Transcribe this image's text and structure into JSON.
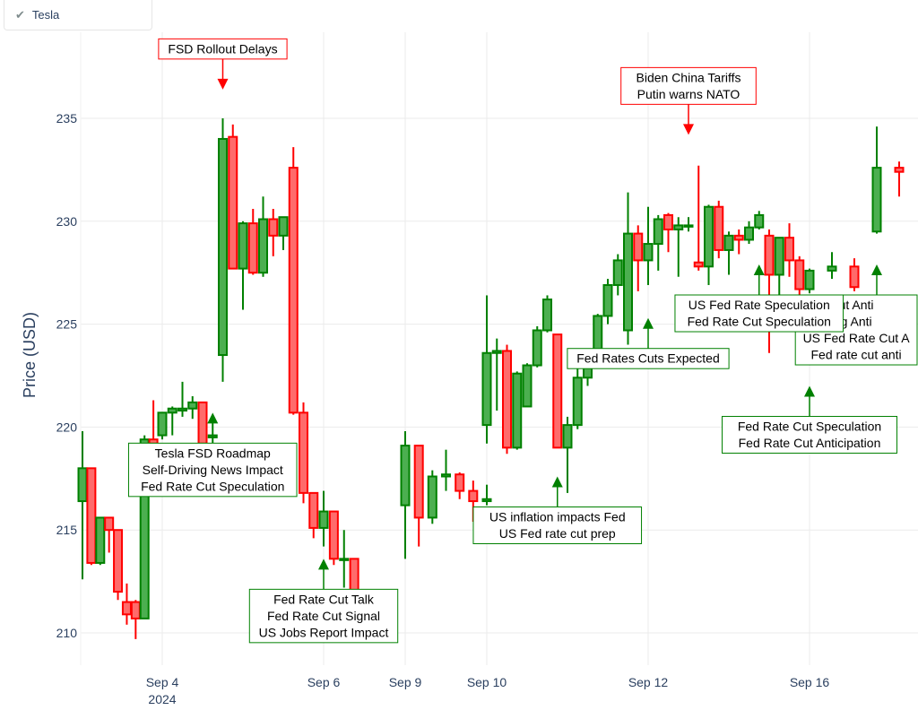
{
  "legend": {
    "label": "Tesla",
    "check_icon": "check-icon"
  },
  "colors": {
    "increasing": "#008000",
    "increasing_fill": "#4caf50",
    "decreasing": "#ff0000",
    "decreasing_fill": "#ff6b6b",
    "grid": "#ebebeb",
    "axis_text": "#2a3f5f"
  },
  "chart_data": {
    "type": "candlestick",
    "series": [
      {
        "name": "Tesla"
      }
    ],
    "ylabel": "Price (USD)",
    "ylim": [
      207,
      238.5
    ],
    "yticks": [
      210,
      215,
      220,
      225,
      230,
      235
    ],
    "xticks": [
      {
        "label": "Sep 4",
        "sub": "2024",
        "t": 2.0
      },
      {
        "label": "Sep 6",
        "t": 4.0
      },
      {
        "label": "Sep 9",
        "t": 5.0
      },
      {
        "label": "Sep 10",
        "t": 6.0
      },
      {
        "label": "Sep 12",
        "t": 8.0
      },
      {
        "label": "Sep 16",
        "t": 10.0
      }
    ],
    "candles": [
      {
        "t": 0.875,
        "o": 216.4,
        "h": 219.8,
        "l": 212.6,
        "c": 218.0
      },
      {
        "t": 1.0,
        "o": 218.0,
        "h": 218.0,
        "l": 213.3,
        "c": 213.4
      },
      {
        "t": 1.125,
        "o": 213.4,
        "h": 215.6,
        "l": 213.3,
        "c": 215.6
      },
      {
        "t": 1.25,
        "o": 215.6,
        "h": 215.6,
        "l": 213.9,
        "c": 215.0
      },
      {
        "t": 1.375,
        "o": 215.0,
        "h": 215.0,
        "l": 211.6,
        "c": 212.0
      },
      {
        "t": 1.5,
        "o": 211.5,
        "h": 212.4,
        "l": 210.4,
        "c": 210.9
      },
      {
        "t": 1.625,
        "o": 211.5,
        "h": 211.6,
        "l": 209.7,
        "c": 210.7
      },
      {
        "t": 1.75,
        "o": 210.7,
        "h": 219.6,
        "l": 210.7,
        "c": 219.4
      },
      {
        "t": 1.875,
        "o": 219.4,
        "h": 221.3,
        "l": 218.5,
        "c": 219.2
      },
      {
        "t": 2.0,
        "o": 219.6,
        "h": 220.7,
        "l": 219.4,
        "c": 220.7
      },
      {
        "t": 2.125,
        "o": 220.7,
        "h": 221.0,
        "l": 219.6,
        "c": 220.9
      },
      {
        "t": 2.25,
        "o": 220.8,
        "h": 222.2,
        "l": 220.5,
        "c": 220.9
      },
      {
        "t": 2.375,
        "o": 220.9,
        "h": 221.5,
        "l": 220.4,
        "c": 221.2
      },
      {
        "t": 2.5,
        "o": 221.2,
        "h": 221.2,
        "l": 219.0,
        "c": 219.2
      },
      {
        "t": 2.625,
        "o": 219.5,
        "h": 220.4,
        "l": 218.8,
        "c": 219.6
      },
      {
        "t": 2.75,
        "o": 223.5,
        "h": 235.0,
        "l": 222.2,
        "c": 234.0
      },
      {
        "t": 2.875,
        "o": 234.1,
        "h": 234.7,
        "l": 227.7,
        "c": 227.7
      },
      {
        "t": 3.0,
        "o": 227.7,
        "h": 230.0,
        "l": 225.7,
        "c": 229.9
      },
      {
        "t": 3.125,
        "o": 229.9,
        "h": 230.6,
        "l": 227.4,
        "c": 227.5
      },
      {
        "t": 3.25,
        "o": 227.5,
        "h": 231.2,
        "l": 227.3,
        "c": 230.1
      },
      {
        "t": 3.375,
        "o": 230.1,
        "h": 230.6,
        "l": 228.3,
        "c": 229.3
      },
      {
        "t": 3.5,
        "o": 229.3,
        "h": 230.2,
        "l": 228.6,
        "c": 230.2
      },
      {
        "t": 3.625,
        "o": 232.6,
        "h": 233.6,
        "l": 220.6,
        "c": 220.7
      },
      {
        "t": 3.75,
        "o": 220.7,
        "h": 221.2,
        "l": 216.3,
        "c": 216.8
      },
      {
        "t": 3.875,
        "o": 216.8,
        "h": 216.8,
        "l": 214.6,
        "c": 215.1
      },
      {
        "t": 4.0,
        "o": 215.1,
        "h": 216.9,
        "l": 214.2,
        "c": 215.9
      },
      {
        "t": 4.125,
        "o": 215.9,
        "h": 215.9,
        "l": 213.3,
        "c": 213.6
      },
      {
        "t": 4.25,
        "o": 213.6,
        "h": 215.0,
        "l": 212.2,
        "c": 213.6
      },
      {
        "t": 4.375,
        "o": 213.6,
        "h": 213.6,
        "l": 210.9,
        "c": 211.2
      },
      {
        "t": 5.0,
        "o": 216.2,
        "h": 219.8,
        "l": 213.6,
        "c": 219.1
      },
      {
        "t": 5.167,
        "o": 219.1,
        "h": 219.1,
        "l": 214.2,
        "c": 215.6
      },
      {
        "t": 5.333,
        "o": 215.6,
        "h": 217.9,
        "l": 215.3,
        "c": 217.6
      },
      {
        "t": 5.5,
        "o": 217.6,
        "h": 218.9,
        "l": 216.9,
        "c": 217.7
      },
      {
        "t": 5.667,
        "o": 217.7,
        "h": 217.8,
        "l": 216.5,
        "c": 216.9
      },
      {
        "t": 5.833,
        "o": 216.9,
        "h": 217.4,
        "l": 215.4,
        "c": 216.4
      },
      {
        "t": 6.0,
        "o": 216.4,
        "h": 217.2,
        "l": 216.2,
        "c": 216.5
      },
      {
        "t": 6.0,
        "o": 220.1,
        "h": 226.4,
        "l": 219.2,
        "c": 223.6
      },
      {
        "t": 6.125,
        "o": 223.6,
        "h": 224.3,
        "l": 220.8,
        "c": 223.7
      },
      {
        "t": 6.25,
        "o": 223.7,
        "h": 224.0,
        "l": 218.7,
        "c": 219.0
      },
      {
        "t": 6.375,
        "o": 219.0,
        "h": 222.7,
        "l": 218.9,
        "c": 222.6
      },
      {
        "t": 6.5,
        "o": 221.0,
        "h": 223.1,
        "l": 221.0,
        "c": 223.0
      },
      {
        "t": 6.625,
        "o": 223.0,
        "h": 224.9,
        "l": 222.9,
        "c": 224.7
      },
      {
        "t": 6.75,
        "o": 224.7,
        "h": 226.4,
        "l": 224.6,
        "c": 226.2
      },
      {
        "t": 6.875,
        "o": 224.5,
        "h": 224.5,
        "l": 219.0,
        "c": 219.0
      },
      {
        "t": 7.0,
        "o": 219.0,
        "h": 220.5,
        "l": 216.8,
        "c": 220.1
      },
      {
        "t": 7.125,
        "o": 220.1,
        "h": 223.0,
        "l": 219.9,
        "c": 222.4
      },
      {
        "t": 7.25,
        "o": 222.4,
        "h": 223.7,
        "l": 222.0,
        "c": 223.4
      },
      {
        "t": 7.375,
        "o": 223.4,
        "h": 225.5,
        "l": 223.4,
        "c": 225.4
      },
      {
        "t": 7.5,
        "o": 225.4,
        "h": 227.2,
        "l": 225.0,
        "c": 226.9
      },
      {
        "t": 7.625,
        "o": 226.9,
        "h": 228.4,
        "l": 226.4,
        "c": 228.1
      },
      {
        "t": 7.75,
        "o": 224.7,
        "h": 231.4,
        "l": 224.0,
        "c": 229.4
      },
      {
        "t": 7.875,
        "o": 229.4,
        "h": 229.8,
        "l": 226.6,
        "c": 228.1
      },
      {
        "t": 8.0,
        "o": 228.1,
        "h": 230.7,
        "l": 226.9,
        "c": 228.9
      },
      {
        "t": 8.125,
        "o": 228.9,
        "h": 230.3,
        "l": 227.6,
        "c": 230.1
      },
      {
        "t": 8.25,
        "o": 230.3,
        "h": 230.4,
        "l": 228.5,
        "c": 229.6
      },
      {
        "t": 8.375,
        "o": 229.6,
        "h": 230.2,
        "l": 227.3,
        "c": 229.8
      },
      {
        "t": 8.5,
        "o": 229.8,
        "h": 230.2,
        "l": 229.5,
        "c": 229.8
      },
      {
        "t": 8.625,
        "o": 228.0,
        "h": 232.7,
        "l": 227.6,
        "c": 227.8
      },
      {
        "t": 8.75,
        "o": 227.8,
        "h": 230.8,
        "l": 226.9,
        "c": 230.7
      },
      {
        "t": 8.875,
        "o": 230.7,
        "h": 231.0,
        "l": 228.2,
        "c": 228.6
      },
      {
        "t": 9.0,
        "o": 228.6,
        "h": 229.5,
        "l": 227.4,
        "c": 229.3
      },
      {
        "t": 9.125,
        "o": 229.3,
        "h": 229.6,
        "l": 228.4,
        "c": 229.1
      },
      {
        "t": 9.25,
        "o": 229.1,
        "h": 230.0,
        "l": 228.9,
        "c": 229.7
      },
      {
        "t": 9.375,
        "o": 229.7,
        "h": 230.5,
        "l": 229.6,
        "c": 230.3
      },
      {
        "t": 9.5,
        "o": 229.3,
        "h": 229.6,
        "l": 223.6,
        "c": 227.4
      },
      {
        "t": 9.625,
        "o": 227.4,
        "h": 229.1,
        "l": 224.8,
        "c": 229.2
      },
      {
        "t": 9.75,
        "o": 229.2,
        "h": 229.9,
        "l": 227.3,
        "c": 228.1
      },
      {
        "t": 9.875,
        "o": 228.1,
        "h": 228.3,
        "l": 226.3,
        "c": 226.7
      },
      {
        "t": 10.0,
        "o": 226.7,
        "h": 227.7,
        "l": 226.5,
        "c": 227.6
      },
      {
        "t": 10.125,
        "o": 227.6,
        "h": 228.5,
        "l": 227.2,
        "c": 227.8
      },
      {
        "t": 10.25,
        "o": 227.8,
        "h": 228.2,
        "l": 226.6,
        "c": 226.8
      },
      {
        "t": 10.375,
        "o": 229.5,
        "h": 234.6,
        "l": 229.4,
        "c": 232.6
      },
      {
        "t": 10.5,
        "o": 232.6,
        "h": 232.9,
        "l": 231.2,
        "c": 232.4
      }
    ],
    "annotations": [
      {
        "t": 2.75,
        "y": 236.4,
        "dir": "down",
        "color": "red",
        "lines": [
          "FSD Rollout Delays"
        ]
      },
      {
        "t": 2.625,
        "y": 220.7,
        "dir": "up",
        "color": "green",
        "lines": [
          "Tesla FSD Roadmap",
          "Self-Driving News Impact",
          "Fed Rate Cut Speculation"
        ]
      },
      {
        "t": 4.0,
        "y": 213.6,
        "dir": "up",
        "color": "green",
        "lines": [
          "Fed Rate Cut Talk",
          "Fed Rate Cut Signal",
          "US Jobs Report Impact"
        ]
      },
      {
        "t": 6.875,
        "y": 217.6,
        "dir": "up",
        "color": "green",
        "lines": [
          "US inflation impacts Fed",
          "US Fed rate cut prep"
        ]
      },
      {
        "t": 8.0,
        "y": 225.3,
        "dir": "up",
        "color": "green",
        "lines": [
          "Fed Rates Cuts Expected"
        ]
      },
      {
        "t": 8.5,
        "y": 234.2,
        "dir": "down",
        "color": "red",
        "lines": [
          "Biden China Tariffs",
          "Putin warns NATO"
        ]
      },
      {
        "t": 10.375,
        "y": 227.9,
        "dir": "up",
        "color": "green",
        "lines": [
          "ut Anti",
          "g Anti",
          "US Fed Rate Cut A",
          "Fed rate cut anti"
        ]
      },
      {
        "t": 10.0,
        "y": 222.0,
        "dir": "up",
        "color": "green",
        "lines": [
          "Fed Rate Cut Speculation",
          "Fed Rate Cut Anticipation"
        ]
      },
      {
        "t": 9.375,
        "y": 227.9,
        "dir": "up",
        "color": "green",
        "lines": [
          "US Fed Rate Speculation",
          "Fed Rate Cut Speculation"
        ]
      }
    ]
  }
}
